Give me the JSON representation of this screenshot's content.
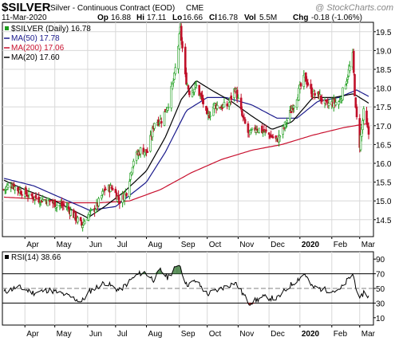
{
  "header": {
    "symbol": "$SILVER",
    "description": "Silver - Continuous Contract (EOD)",
    "exchange": "CME",
    "date": "11-Mar-2020",
    "watermark": "@ StockCharts.com",
    "quote": {
      "open_label": "Op",
      "open": "16.88",
      "high_label": "Hi",
      "high": "17.11",
      "low_label": "Lo",
      "low": "16.66",
      "close_label": "Cl",
      "close": "16.78",
      "volume_label": "Vol",
      "volume": "5.5M",
      "change_label": "Chg",
      "change": "-0.18 (-1.06%)"
    }
  },
  "colors": {
    "up_bar": "#1e9e1e",
    "down_bar": "#c0102a",
    "ma50": "#1a1a8c",
    "ma200": "#c8102e",
    "ma20": "#000000",
    "rsi_line": "#000000",
    "overbought_fill": "#3c7a3c",
    "oversold_fill": "#b30000",
    "grid": "#d8d8d8",
    "neutral_level": "#808080"
  },
  "chart_data": [
    {
      "type": "candlestick",
      "title": "$SILVER (Daily) 16.78",
      "legend": [
        {
          "name": "$SILVER (Daily)",
          "value": "16.78",
          "color": "#1e9e1e",
          "swatch": "square"
        },
        {
          "name": "MA(50)",
          "value": "17.78",
          "color": "#1a1a8c",
          "swatch": "line"
        },
        {
          "name": "MA(200)",
          "value": "17.06",
          "color": "#c8102e",
          "swatch": "line"
        },
        {
          "name": "MA(20)",
          "value": "17.60",
          "color": "#000000",
          "swatch": "line"
        }
      ],
      "legend_placement": "top-left",
      "ylim": [
        14.05,
        19.75
      ],
      "yticks": [
        "19.5",
        "19.0",
        "18.5",
        "18.0",
        "17.5",
        "17.0",
        "16.5",
        "16.0",
        "15.5",
        "15.0",
        "14.5"
      ],
      "ytick_values": [
        19.5,
        19.0,
        18.5,
        18.0,
        17.5,
        17.0,
        16.5,
        16.0,
        15.5,
        15.0,
        14.5
      ],
      "grid": true,
      "x_start": "2019-03-11",
      "x_end": "2020-03-11",
      "xticks": [
        {
          "label": "Apr",
          "date": "2019-04-01"
        },
        {
          "label": "May",
          "date": "2019-05-01"
        },
        {
          "label": "Jun",
          "date": "2019-06-03"
        },
        {
          "label": "Jul",
          "date": "2019-07-01"
        },
        {
          "label": "Aug",
          "date": "2019-08-01"
        },
        {
          "label": "Sep",
          "date": "2019-09-03"
        },
        {
          "label": "Oct",
          "date": "2019-10-01"
        },
        {
          "label": "Nov",
          "date": "2019-11-01"
        },
        {
          "label": "Dec",
          "date": "2019-12-02"
        },
        {
          "label": "2020",
          "date": "2020-01-02"
        },
        {
          "label": "Feb",
          "date": "2020-02-03"
        },
        {
          "label": "Mar",
          "date": "2020-03-02"
        }
      ],
      "price_anchors": [
        {
          "date": "2019-03-11",
          "close": 15.3
        },
        {
          "date": "2019-03-18",
          "close": 15.45
        },
        {
          "date": "2019-03-25",
          "close": 15.3
        },
        {
          "date": "2019-04-05",
          "close": 15.15
        },
        {
          "date": "2019-04-15",
          "close": 15.05
        },
        {
          "date": "2019-04-25",
          "close": 15.0
        },
        {
          "date": "2019-05-03",
          "close": 14.9
        },
        {
          "date": "2019-05-13",
          "close": 14.85
        },
        {
          "date": "2019-05-22",
          "close": 14.55
        },
        {
          "date": "2019-05-28",
          "close": 14.35
        },
        {
          "date": "2019-06-03",
          "close": 14.6
        },
        {
          "date": "2019-06-12",
          "close": 14.85
        },
        {
          "date": "2019-06-20",
          "close": 15.3
        },
        {
          "date": "2019-06-28",
          "close": 15.35
        },
        {
          "date": "2019-07-05",
          "close": 15.0
        },
        {
          "date": "2019-07-12",
          "close": 15.25
        },
        {
          "date": "2019-07-19",
          "close": 16.1
        },
        {
          "date": "2019-07-26",
          "close": 16.35
        },
        {
          "date": "2019-08-02",
          "close": 16.3
        },
        {
          "date": "2019-08-09",
          "close": 17.1
        },
        {
          "date": "2019-08-16",
          "close": 17.15
        },
        {
          "date": "2019-08-23",
          "close": 17.6
        },
        {
          "date": "2019-08-29",
          "close": 18.3
        },
        {
          "date": "2019-09-04",
          "close": 19.55
        },
        {
          "date": "2019-09-09",
          "close": 18.3
        },
        {
          "date": "2019-09-13",
          "close": 17.9
        },
        {
          "date": "2019-09-20",
          "close": 18.05
        },
        {
          "date": "2019-09-27",
          "close": 17.6
        },
        {
          "date": "2019-10-01",
          "close": 17.2
        },
        {
          "date": "2019-10-08",
          "close": 17.55
        },
        {
          "date": "2019-10-15",
          "close": 17.5
        },
        {
          "date": "2019-10-22",
          "close": 17.55
        },
        {
          "date": "2019-10-29",
          "close": 18.0
        },
        {
          "date": "2019-11-05",
          "close": 17.25
        },
        {
          "date": "2019-11-12",
          "close": 16.75
        },
        {
          "date": "2019-11-19",
          "close": 16.95
        },
        {
          "date": "2019-11-26",
          "close": 16.85
        },
        {
          "date": "2019-12-03",
          "close": 16.75
        },
        {
          "date": "2019-12-10",
          "close": 16.6
        },
        {
          "date": "2019-12-17",
          "close": 16.95
        },
        {
          "date": "2019-12-24",
          "close": 17.4
        },
        {
          "date": "2019-12-31",
          "close": 17.85
        },
        {
          "date": "2020-01-07",
          "close": 18.3
        },
        {
          "date": "2020-01-14",
          "close": 17.85
        },
        {
          "date": "2020-01-21",
          "close": 17.8
        },
        {
          "date": "2020-01-28",
          "close": 17.55
        },
        {
          "date": "2020-02-04",
          "close": 17.6
        },
        {
          "date": "2020-02-11",
          "close": 17.65
        },
        {
          "date": "2020-02-18",
          "close": 18.25
        },
        {
          "date": "2020-02-24",
          "close": 18.85
        },
        {
          "date": "2020-02-27",
          "close": 17.4
        },
        {
          "date": "2020-03-02",
          "close": 16.5
        },
        {
          "date": "2020-03-06",
          "close": 17.35
        },
        {
          "date": "2020-03-11",
          "close": 16.78
        }
      ],
      "ma50_anchors": [
        {
          "date": "2019-03-11",
          "value": 15.6
        },
        {
          "date": "2019-04-10",
          "value": 15.4
        },
        {
          "date": "2019-05-10",
          "value": 15.05
        },
        {
          "date": "2019-06-05",
          "value": 14.75
        },
        {
          "date": "2019-07-01",
          "value": 14.85
        },
        {
          "date": "2019-08-01",
          "value": 15.5
        },
        {
          "date": "2019-08-20",
          "value": 16.3
        },
        {
          "date": "2019-09-10",
          "value": 17.4
        },
        {
          "date": "2019-10-01",
          "value": 17.75
        },
        {
          "date": "2019-10-20",
          "value": 17.75
        },
        {
          "date": "2019-11-15",
          "value": 17.55
        },
        {
          "date": "2019-12-10",
          "value": 17.2
        },
        {
          "date": "2019-12-30",
          "value": 17.2
        },
        {
          "date": "2020-01-20",
          "value": 17.65
        },
        {
          "date": "2020-02-10",
          "value": 17.75
        },
        {
          "date": "2020-02-28",
          "value": 17.95
        },
        {
          "date": "2020-03-11",
          "value": 17.78
        }
      ],
      "ma200_anchors": [
        {
          "date": "2019-03-11",
          "value": 15.1
        },
        {
          "date": "2019-04-15",
          "value": 15.05
        },
        {
          "date": "2019-05-15",
          "value": 14.95
        },
        {
          "date": "2019-06-15",
          "value": 14.95
        },
        {
          "date": "2019-07-15",
          "value": 15.0
        },
        {
          "date": "2019-08-15",
          "value": 15.3
        },
        {
          "date": "2019-09-15",
          "value": 15.75
        },
        {
          "date": "2019-10-15",
          "value": 16.1
        },
        {
          "date": "2019-11-15",
          "value": 16.35
        },
        {
          "date": "2019-12-15",
          "value": 16.5
        },
        {
          "date": "2020-01-15",
          "value": 16.75
        },
        {
          "date": "2020-02-15",
          "value": 16.95
        },
        {
          "date": "2020-03-11",
          "value": 17.06
        }
      ],
      "ma20_anchors": [
        {
          "date": "2019-03-11",
          "value": 15.55
        },
        {
          "date": "2019-04-01",
          "value": 15.3
        },
        {
          "date": "2019-05-01",
          "value": 15.0
        },
        {
          "date": "2019-06-03",
          "value": 14.55
        },
        {
          "date": "2019-06-20",
          "value": 14.85
        },
        {
          "date": "2019-07-10",
          "value": 15.25
        },
        {
          "date": "2019-08-01",
          "value": 15.8
        },
        {
          "date": "2019-08-20",
          "value": 16.7
        },
        {
          "date": "2019-09-05",
          "value": 17.7
        },
        {
          "date": "2019-09-20",
          "value": 18.2
        },
        {
          "date": "2019-10-05",
          "value": 17.95
        },
        {
          "date": "2019-10-25",
          "value": 17.65
        },
        {
          "date": "2019-11-15",
          "value": 17.25
        },
        {
          "date": "2019-12-05",
          "value": 16.9
        },
        {
          "date": "2019-12-25",
          "value": 17.1
        },
        {
          "date": "2020-01-15",
          "value": 17.75
        },
        {
          "date": "2020-02-05",
          "value": 17.75
        },
        {
          "date": "2020-02-25",
          "value": 17.85
        },
        {
          "date": "2020-03-11",
          "value": 17.6
        }
      ]
    },
    {
      "type": "line",
      "title": "RSI(14) 38.66",
      "legend": [
        {
          "name": "RSI(14)",
          "value": "38.66",
          "color": "#000000",
          "swatch": "square"
        }
      ],
      "ylim": [
        0,
        100
      ],
      "levels": [
        70,
        50,
        30
      ],
      "yticks": [
        "90",
        "70",
        "50",
        "30",
        "10"
      ],
      "ytick_values": [
        90,
        70,
        50,
        30,
        10
      ],
      "xticks": [
        "Apr",
        "May",
        "Jun",
        "Jul",
        "Aug",
        "Sep",
        "Oct",
        "Nov",
        "Dec",
        "2020",
        "Feb",
        "Mar"
      ],
      "rsi_anchors": [
        {
          "date": "2019-03-11",
          "value": 45
        },
        {
          "date": "2019-03-25",
          "value": 52
        },
        {
          "date": "2019-04-10",
          "value": 44
        },
        {
          "date": "2019-04-25",
          "value": 48
        },
        {
          "date": "2019-05-10",
          "value": 42
        },
        {
          "date": "2019-05-28",
          "value": 32
        },
        {
          "date": "2019-06-05",
          "value": 46
        },
        {
          "date": "2019-06-20",
          "value": 58
        },
        {
          "date": "2019-07-05",
          "value": 47
        },
        {
          "date": "2019-07-20",
          "value": 66
        },
        {
          "date": "2019-07-29",
          "value": 73
        },
        {
          "date": "2019-08-08",
          "value": 62
        },
        {
          "date": "2019-08-15",
          "value": 75
        },
        {
          "date": "2019-08-22",
          "value": 65
        },
        {
          "date": "2019-09-03",
          "value": 84
        },
        {
          "date": "2019-09-10",
          "value": 55
        },
        {
          "date": "2019-09-20",
          "value": 60
        },
        {
          "date": "2019-10-01",
          "value": 42
        },
        {
          "date": "2019-10-15",
          "value": 50
        },
        {
          "date": "2019-10-29",
          "value": 58
        },
        {
          "date": "2019-11-12",
          "value": 30
        },
        {
          "date": "2019-11-26",
          "value": 38
        },
        {
          "date": "2019-12-10",
          "value": 36
        },
        {
          "date": "2019-12-24",
          "value": 55
        },
        {
          "date": "2020-01-07",
          "value": 70
        },
        {
          "date": "2020-01-14",
          "value": 52
        },
        {
          "date": "2020-01-28",
          "value": 48
        },
        {
          "date": "2020-02-10",
          "value": 46
        },
        {
          "date": "2020-02-24",
          "value": 70
        },
        {
          "date": "2020-03-02",
          "value": 33
        },
        {
          "date": "2020-03-06",
          "value": 45
        },
        {
          "date": "2020-03-11",
          "value": 38.66
        }
      ]
    }
  ]
}
